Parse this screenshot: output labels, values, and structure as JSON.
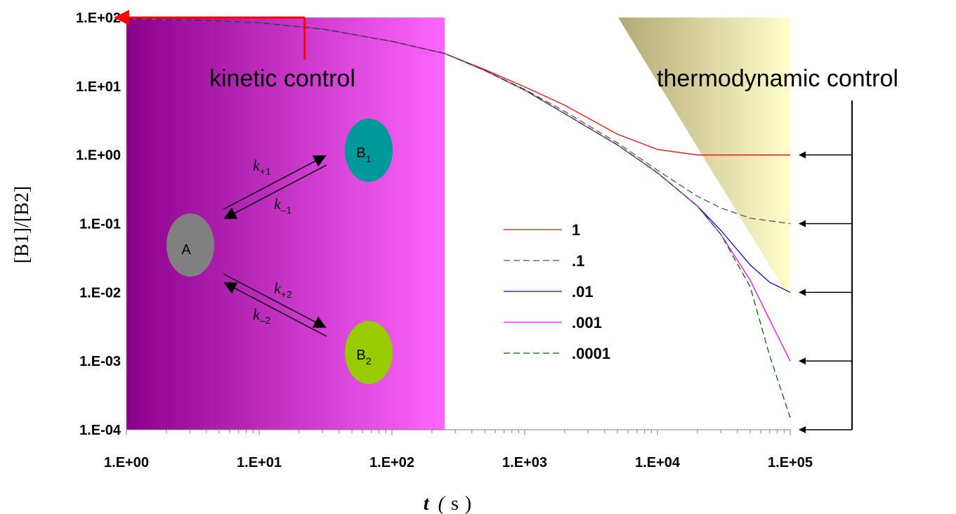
{
  "chart_data": {
    "type": "line",
    "xscale": "log",
    "yscale": "log",
    "xlim": [
      1,
      100000
    ],
    "ylim": [
      0.0001,
      100
    ],
    "xticks": [
      "1.E+00",
      "1.E+01",
      "1.E+02",
      "1.E+03",
      "1.E+04",
      "1.E+05"
    ],
    "yticks": [
      "1.E+02",
      "1.E+01",
      "1.E+00",
      "1.E-01",
      "1.E-02",
      "1.E-03",
      "1.E-04"
    ],
    "xlabel": {
      "italic": "t",
      "open": "(",
      "unit": "s",
      "close": ")"
    },
    "ylabel": "[B1]/[B2]",
    "grid": false,
    "legend_position": "center-right",
    "series": [
      {
        "name": "1",
        "color": "#ff0000",
        "dash": "solid",
        "x": [
          1,
          3,
          10,
          30,
          100,
          250,
          500,
          1000,
          2000,
          5000,
          10000,
          20000,
          50000,
          100000
        ],
        "y": [
          96,
          92,
          84,
          68,
          45,
          30,
          17.5,
          9.8,
          5.3,
          2.0,
          1.2,
          1.0,
          1.0,
          1.0
        ]
      },
      {
        "name": ".1",
        "color": "#555555",
        "dash": "dashed",
        "x": [
          1,
          3,
          10,
          30,
          100,
          250,
          500,
          1000,
          2000,
          5000,
          10000,
          20000,
          30000,
          50000,
          100000
        ],
        "y": [
          96,
          92,
          84,
          68,
          45,
          30,
          17,
          9,
          4.3,
          1.5,
          0.6,
          0.25,
          0.17,
          0.12,
          0.1
        ]
      },
      {
        "name": ".01",
        "color": "#0000ff",
        "dash": "solid",
        "x": [
          1,
          3,
          10,
          30,
          100,
          250,
          500,
          1000,
          2000,
          5000,
          10000,
          20000,
          30000,
          50000,
          70000,
          100000
        ],
        "y": [
          96,
          92,
          84,
          68,
          45,
          30,
          17,
          8.8,
          4.0,
          1.4,
          0.55,
          0.18,
          0.08,
          0.025,
          0.014,
          0.01
        ]
      },
      {
        "name": ".001",
        "color": "#ff00ff",
        "dash": "solid",
        "x": [
          1,
          3,
          10,
          30,
          100,
          250,
          500,
          1000,
          2000,
          5000,
          10000,
          20000,
          30000,
          50000,
          70000,
          100000
        ],
        "y": [
          96,
          92,
          84,
          68,
          45,
          30,
          17,
          8.8,
          4.0,
          1.4,
          0.55,
          0.18,
          0.07,
          0.015,
          0.004,
          0.001
        ]
      },
      {
        "name": ".0001",
        "color": "#006600",
        "dash": "dashed",
        "x": [
          1,
          3,
          10,
          30,
          100,
          250,
          500,
          1000,
          2000,
          5000,
          10000,
          20000,
          30000,
          50000,
          70000,
          100000
        ],
        "y": [
          96,
          92,
          84,
          68,
          45,
          30,
          17,
          8.8,
          4.0,
          1.4,
          0.55,
          0.18,
          0.07,
          0.012,
          0.0012,
          0.00015
        ]
      }
    ],
    "annotations": {
      "kinetic": "kinetic control",
      "kinetic_x": 22,
      "kinetic_region_x": [
        1,
        250
      ],
      "thermo": "thermodynamic control",
      "equilibrium_levels": [
        1,
        0.1,
        0.01,
        0.001,
        0.0001
      ]
    },
    "colors": {
      "kinetic_region_start": "#8b008b",
      "kinetic_region_end": "#ff66ff",
      "thermo_region_start": "#b3a874",
      "thermo_region_end": "#ffffcc",
      "kinetic_arrow": "#ff0000"
    },
    "scheme": {
      "A": "A",
      "B": "B",
      "sub1": "1",
      "sub2": "2",
      "k": "k",
      "kp1": "+1",
      "km1": "–1",
      "kp2": "+2",
      "km2": "–2",
      "colors": {
        "A": "#808080",
        "B1": "#009999",
        "B2": "#99cc00"
      }
    }
  }
}
